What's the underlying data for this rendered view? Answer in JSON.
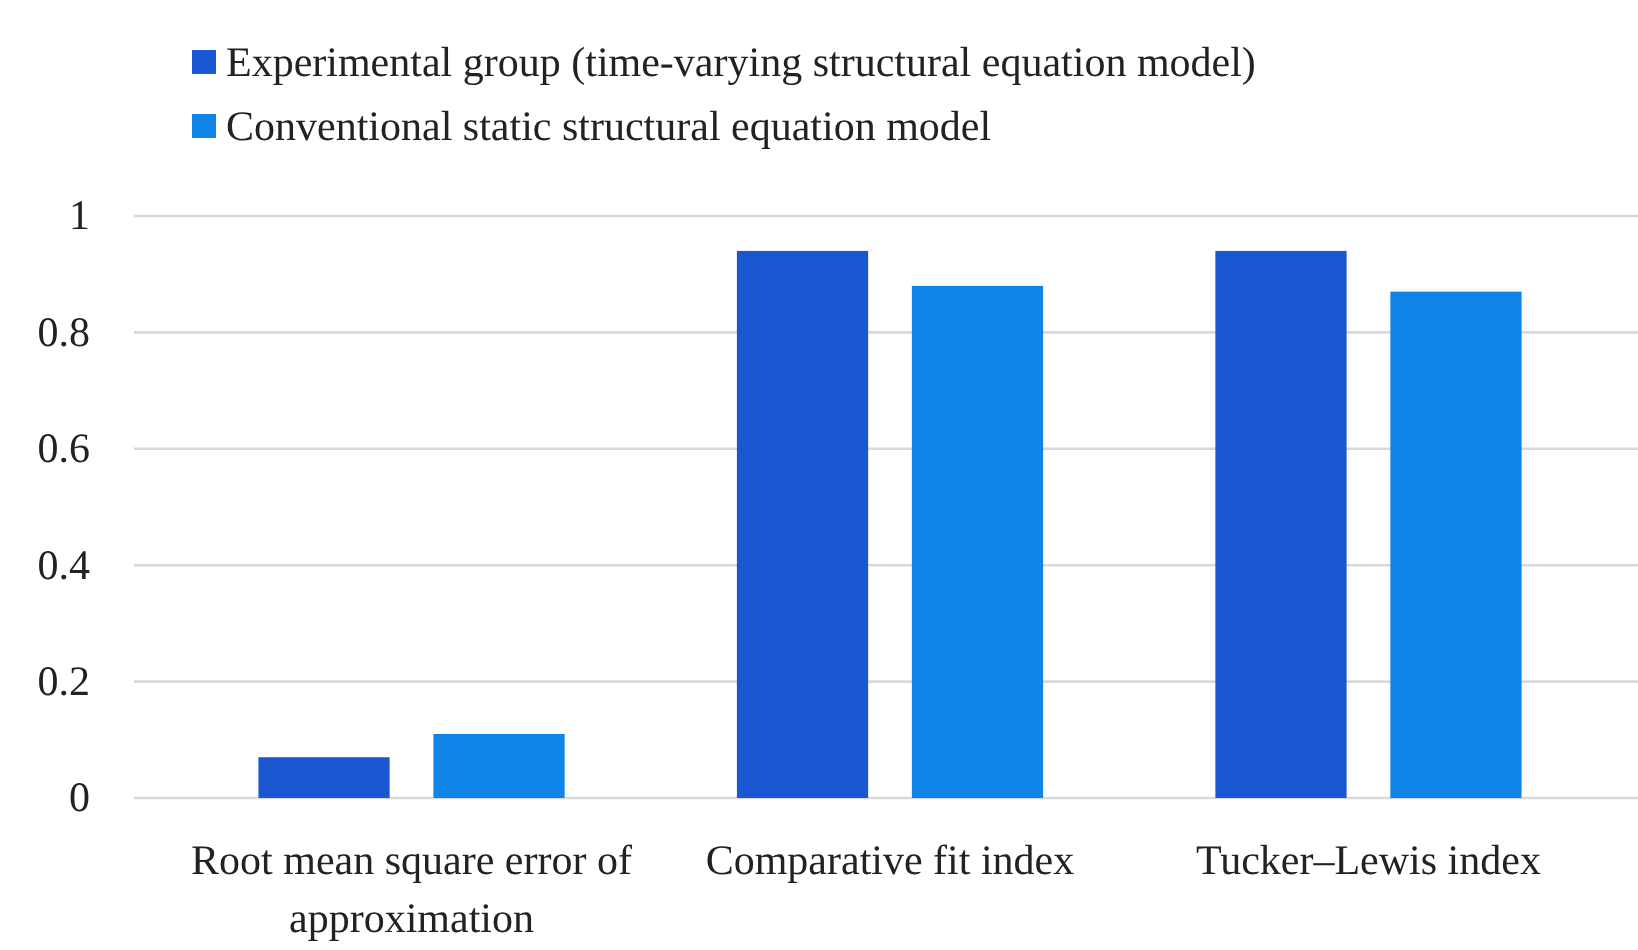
{
  "chart_data": {
    "type": "bar",
    "categories": [
      "Root mean square error of approximation",
      "Comparative fit index",
      "Tucker–Lewis index"
    ],
    "series": [
      {
        "name": "Experimental group (time-varying structural equation model)",
        "color": "#1c57d2",
        "values": [
          0.07,
          0.94,
          0.94
        ]
      },
      {
        "name": "Conventional static structural equation model",
        "color": "#1085e8",
        "values": [
          0.11,
          0.88,
          0.87
        ]
      }
    ],
    "ylim": [
      0,
      1
    ],
    "yticks": [
      0,
      0.2,
      0.4,
      0.6,
      0.8,
      1
    ],
    "grid": "y",
    "legend": "top"
  }
}
